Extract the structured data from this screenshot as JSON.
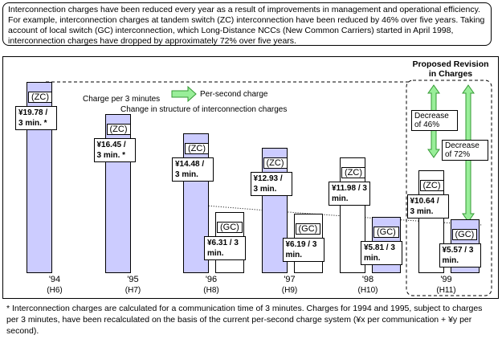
{
  "chart_data": {
    "type": "bar",
    "intro": "Interconnection charges have been reduced every year as a result of improvements in management and operational efficiency.  For example, interconnection charges at tandem switch (ZC) interconnection have been reduced by 46% over five years.  Taking account of local switch (GC) interconnection, which Long-Distance NCCs (New Common Carriers) started in April 1998, interconnection charges have dropped by approximately 72% over five years.",
    "categories": [
      "'94",
      "'95",
      "'96",
      "'97",
      "'98",
      "'99"
    ],
    "category_sublabels": [
      "(H6)",
      "(H7)",
      "(H8)",
      "(H9)",
      "(H10)",
      "(H11)"
    ],
    "series": [
      {
        "name": "(ZC)",
        "colors": [
          "#ccccff",
          "#ccccff",
          "#ccccff",
          "#ccccff",
          "#ffffff",
          "#ffffff"
        ],
        "values": [
          19.78,
          16.45,
          14.48,
          12.93,
          11.98,
          10.64
        ],
        "value_labels": [
          "¥19.78 / 3 min. *",
          "¥16.45 / 3 min. *",
          "¥14.48 / 3 min.",
          "¥12.93 / 3 min.",
          "¥11.98 / 3 min.",
          "¥10.64 / 3 min."
        ]
      },
      {
        "name": "(GC)",
        "colors": [
          null,
          null,
          "#ffffff",
          "#ffffff",
          "#ccccff",
          "#ccccff"
        ],
        "values": [
          null,
          null,
          6.31,
          6.19,
          5.81,
          5.57
        ],
        "value_labels": [
          null,
          null,
          "¥6.31 / 3 min.",
          "¥6.19 / 3 min.",
          "¥5.81 / 3 min.",
          "¥5.57 / 3 min."
        ]
      }
    ],
    "annotations": {
      "charge_from": "Charge per 3 minutes",
      "charge_to": "Per-second charge",
      "structure": "Change in structure of interconnection charges",
      "revision": "Proposed Revision in Charges",
      "decrease_zc": "Decrease of 46%",
      "decrease_total": "Decrease of 72%"
    },
    "footnote": "*  Interconnection charges are calculated for a communication time of 3 minutes.  Charges for 1994 and 1995, subject to charges per 3 minutes, have been recalculated on the basis of the current per-second charge system  (¥x per communication + ¥y per second)."
  }
}
